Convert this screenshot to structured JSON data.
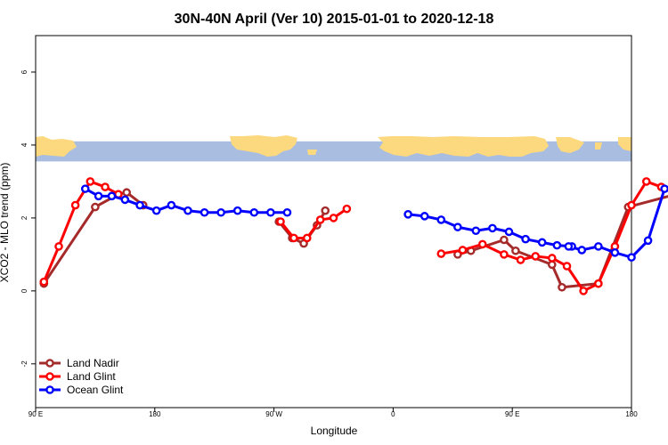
{
  "chart_data": {
    "type": "line",
    "title": "30N-40N April (Ver 10)   2015-01-01 to 2020-12-18",
    "xlabel": "Longitude",
    "ylabel": "XCO2 - MLO trend (ppm)",
    "xlim": [
      90,
      450
    ],
    "ylim": [
      -3.2,
      7
    ],
    "x_ticks": [
      {
        "value": 90,
        "label": "90 E"
      },
      {
        "value": 180,
        "label": "180"
      },
      {
        "value": 270,
        "label": "90 W"
      },
      {
        "value": 360,
        "label": "0"
      },
      {
        "value": 450,
        "label": "90 E"
      },
      {
        "value": 540,
        "label": "180"
      }
    ],
    "y_ticks": [
      {
        "value": -2,
        "label": "-2"
      },
      {
        "value": 0,
        "label": "0"
      },
      {
        "value": 2,
        "label": "2"
      },
      {
        "value": 4,
        "label": "4"
      },
      {
        "value": 6,
        "label": "6"
      }
    ],
    "grid": false,
    "legend_position": "bottom-left",
    "map_strip": {
      "y_range": [
        3.55,
        4.1
      ],
      "ocean_color": "#a9bde0",
      "land_color": "#fcd97f"
    },
    "series": [
      {
        "name": "Land Nadir",
        "color": "#a52a2a",
        "x": [
          95,
          126,
          140,
          145,
          155,
          237,
          245,
          252,
          260,
          265,
          345,
          353,
          373,
          380,
          402,
          408,
          430,
          448,
          477,
          495,
          490
        ],
        "y": [
          0.2,
          2.3,
          2.65,
          2.7,
          2.35,
          1.9,
          1.45,
          1.3,
          1.8,
          2.2,
          1.0,
          1.1,
          1.4,
          1.1,
          0.72,
          0.1,
          0.2,
          2.3,
          2.65,
          2.7,
          2.35
        ]
      },
      {
        "name": "Land Glint",
        "color": "#ff0000",
        "x": [
          95,
          104,
          114,
          123,
          132,
          140,
          238,
          246,
          254,
          262,
          270,
          278,
          335,
          348,
          360,
          373,
          383,
          392,
          402,
          411,
          421,
          430,
          440,
          450,
          459,
          468,
          477
        ],
        "y": [
          0.25,
          1.22,
          2.35,
          3.0,
          2.85,
          2.65,
          1.9,
          1.45,
          1.45,
          1.95,
          2.0,
          2.25,
          1.02,
          1.12,
          1.28,
          1.0,
          0.85,
          0.95,
          0.9,
          0.68,
          0.0,
          0.2,
          1.22,
          2.35,
          3.0,
          2.85,
          2.65
        ]
      },
      {
        "name": "Ocean Glint",
        "color": "#0000ff",
        "x": [
          120,
          128,
          136,
          144,
          153,
          163,
          172,
          182,
          192,
          202,
          212,
          222,
          232,
          242,
          315,
          325,
          335,
          345,
          356,
          366,
          376,
          386,
          396,
          405,
          414,
          412,
          420,
          430,
          440,
          450,
          460,
          470,
          480,
          490
        ],
        "y": [
          2.8,
          2.6,
          2.6,
          2.5,
          2.35,
          2.2,
          2.35,
          2.2,
          2.15,
          2.15,
          2.2,
          2.15,
          2.15,
          2.15,
          2.1,
          2.05,
          1.95,
          1.75,
          1.65,
          1.72,
          1.62,
          1.42,
          1.33,
          1.25,
          1.22,
          1.22,
          1.12,
          1.22,
          1.05,
          0.92,
          1.38,
          2.8,
          2.6,
          2.6
        ]
      }
    ]
  }
}
